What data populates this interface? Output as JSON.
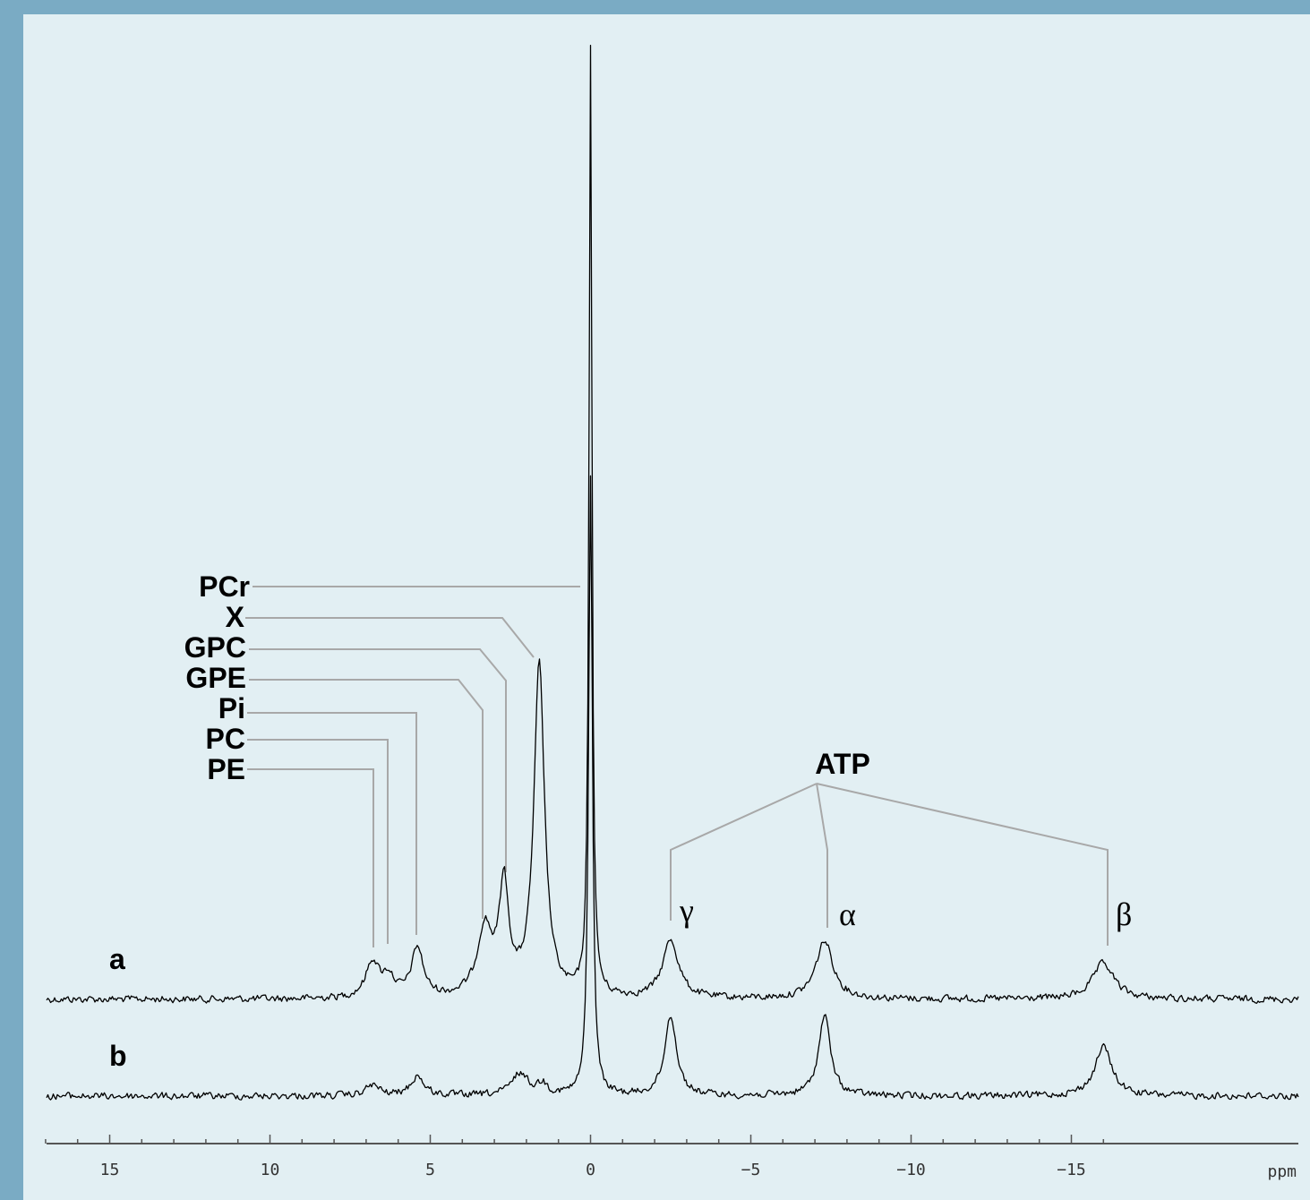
{
  "chart_data": {
    "type": "line",
    "x_unit_label": "ppm",
    "xlim": [
      17,
      -16.5
    ],
    "x_reversed": true,
    "x_ticks": [
      {
        "value": 15,
        "label": "15"
      },
      {
        "value": 10,
        "label": "10"
      },
      {
        "value": 5,
        "label": "5"
      },
      {
        "value": 0,
        "label": "0"
      },
      {
        "value": -5,
        "label": "−5"
      },
      {
        "value": -10,
        "label": "−10"
      },
      {
        "value": -15,
        "label": "−15"
      }
    ],
    "series": [
      {
        "name": "a",
        "peaks": [
          {
            "ppm": 6.8,
            "height": 40,
            "width": 0.25
          },
          {
            "ppm": 6.3,
            "height": 22,
            "width": 0.22
          },
          {
            "ppm": 5.4,
            "height": 55,
            "width": 0.22
          },
          {
            "ppm": 3.3,
            "height": 75,
            "width": 0.28
          },
          {
            "ppm": 2.7,
            "height": 120,
            "width": 0.18
          },
          {
            "ppm": 1.6,
            "height": 370,
            "width": 0.2
          },
          {
            "ppm": 0.0,
            "height": 1060,
            "width": 0.055
          },
          {
            "ppm": -2.5,
            "height": 65,
            "width": 0.3
          },
          {
            "ppm": -7.3,
            "height": 65,
            "width": 0.32
          },
          {
            "ppm": -16.0,
            "height": 40,
            "width": 0.4
          }
        ]
      },
      {
        "name": "b",
        "peaks": [
          {
            "ppm": 6.8,
            "height": 12,
            "width": 0.25
          },
          {
            "ppm": 5.4,
            "height": 22,
            "width": 0.25
          },
          {
            "ppm": 2.2,
            "height": 25,
            "width": 0.3
          },
          {
            "ppm": 1.5,
            "height": 12,
            "width": 0.2
          },
          {
            "ppm": 0.0,
            "height": 690,
            "width": 0.07
          },
          {
            "ppm": -2.5,
            "height": 90,
            "width": 0.22
          },
          {
            "ppm": -7.3,
            "height": 90,
            "width": 0.22
          },
          {
            "ppm": -16.0,
            "height": 55,
            "width": 0.32
          }
        ]
      }
    ],
    "peak_labels": [
      {
        "label": "PCr",
        "ppm": 0.0
      },
      {
        "label": "X",
        "ppm": 1.7
      },
      {
        "label": "GPC",
        "ppm": 2.6
      },
      {
        "label": "GPE",
        "ppm": 3.3
      },
      {
        "label": "Pi",
        "ppm": 5.4
      },
      {
        "label": "PC",
        "ppm": 6.3
      },
      {
        "label": "PE",
        "ppm": 6.8
      }
    ],
    "atp_group": {
      "label": "ATP",
      "members": [
        {
          "label": "γ",
          "ppm": -2.5
        },
        {
          "label": "α",
          "ppm": -7.3
        },
        {
          "label": "β",
          "ppm": -16.0
        }
      ]
    }
  }
}
